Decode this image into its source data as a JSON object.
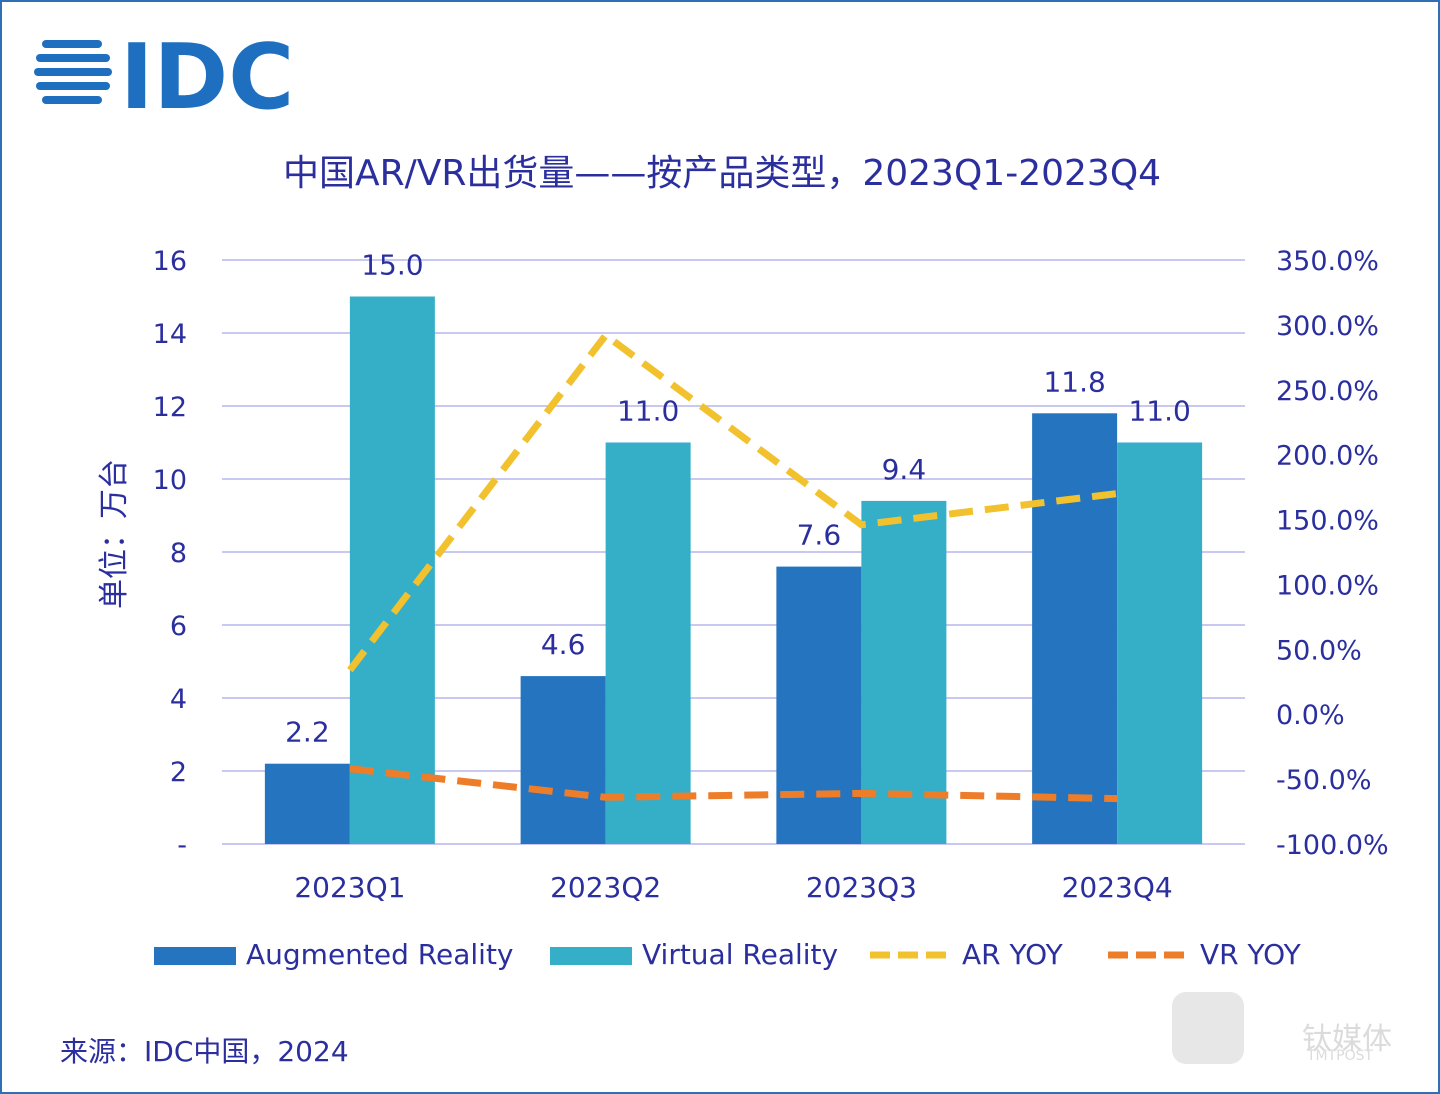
{
  "logo": {
    "text": "IDC",
    "color": "#1f6fc0"
  },
  "watermark": {
    "text": "钛媒体",
    "subtext": "TMTPOST"
  },
  "source": "来源：IDC中国，2024",
  "colors": {
    "ar": "#2474bf",
    "vr": "#35aec8",
    "ar_yoy": "#f2c12e",
    "vr_yoy": "#ee7d2a",
    "text": "#2b2f9e",
    "grid": "#c8c8f0"
  },
  "chart_data": {
    "type": "bar",
    "title": "中国AR/VR出货量——按产品类型，2023Q1-2023Q4",
    "ylabel": "单位：万台",
    "categories": [
      "2023Q1",
      "2023Q2",
      "2023Q3",
      "2023Q4"
    ],
    "ylim": [
      0,
      16
    ],
    "yticks": [
      "-",
      "2",
      "4",
      "6",
      "8",
      "10",
      "12",
      "14",
      "16"
    ],
    "y2lim": [
      -100,
      350
    ],
    "y2ticks": [
      "-100.0%",
      "-50.0%",
      "0.0%",
      "50.0%",
      "100.0%",
      "150.0%",
      "200.0%",
      "250.0%",
      "300.0%",
      "350.0%"
    ],
    "grid": true,
    "legend": "bottom",
    "series": [
      {
        "name": "Augmented Reality",
        "type": "bar",
        "axis": "left",
        "values": [
          2.2,
          4.6,
          7.6,
          11.8
        ],
        "labels": [
          "2.2",
          "4.6",
          "7.6",
          "11.8"
        ]
      },
      {
        "name": "Virtual Reality",
        "type": "bar",
        "axis": "left",
        "values": [
          15.0,
          11.0,
          9.4,
          11.0
        ],
        "labels": [
          "15.0",
          "11.0",
          "9.4",
          "11.0"
        ]
      },
      {
        "name": "AR YOY",
        "type": "line",
        "dashed": true,
        "axis": "right",
        "values": [
          34,
          292,
          146,
          170
        ]
      },
      {
        "name": "VR YOY",
        "type": "line",
        "dashed": true,
        "axis": "right",
        "values": [
          -42,
          -64,
          -61,
          -65
        ]
      }
    ]
  }
}
